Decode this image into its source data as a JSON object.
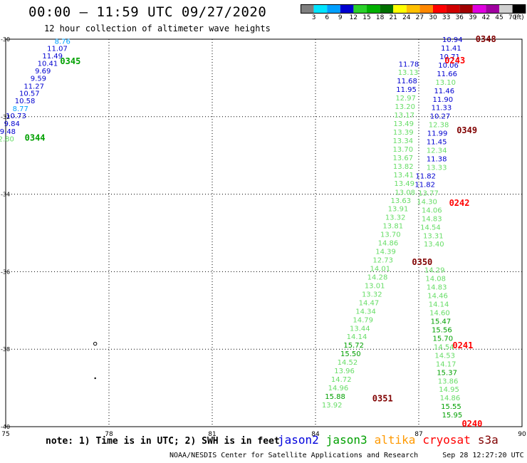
{
  "header": {
    "title": "00:00 – 11:59 UTC 09/27/2020",
    "subtitle": "12 hour collection of altimeter wave heights"
  },
  "colorbar": {
    "colors": [
      "#7f7f7f",
      "#00e5ff",
      "#00a0ff",
      "#0000d0",
      "#2bd12b",
      "#00b000",
      "#007000",
      "#ffff00",
      "#ffc000",
      "#ff8800",
      "#ff0000",
      "#d00000",
      "#a00000",
      "#e000e0",
      "#a000a0",
      "#d0d0d0",
      "#000000"
    ],
    "labels": [
      "3",
      "6",
      "9",
      "12",
      "15",
      "18",
      "21",
      "24",
      "27",
      "30",
      "33",
      "36",
      "39",
      "42",
      "45",
      "70",
      "(ft)"
    ]
  },
  "footer": {
    "note": "note: 1) Time is in UTC; 2) SWH is in feet",
    "legend": [
      {
        "name": "jason2",
        "color": "#0000dd"
      },
      {
        "name": "jason3",
        "color": "#00a000"
      },
      {
        "name": "altika",
        "color": "#ff9900"
      },
      {
        "name": "cryosat",
        "color": "#ff0000"
      },
      {
        "name": "s3a",
        "color": "#800000"
      }
    ],
    "credit": "NOAA/NESDIS Center for Satellite Applications and Research",
    "timestamp": "Sep 28 12:27:20 UTC 2020"
  },
  "chart_data": {
    "type": "scatter",
    "xlim": [
      75,
      90
    ],
    "ylim": [
      -40,
      -30
    ],
    "xticks": [
      75,
      78,
      81,
      84,
      87,
      90
    ],
    "yticks": [
      -30,
      -32,
      -34,
      -36,
      -38,
      -40
    ],
    "x_tick_labels": [
      "75",
      "78",
      "81",
      "84",
      "87",
      "90"
    ],
    "y_tick_labels": [
      "-30",
      "-32",
      "-34",
      "-36",
      "-38",
      "-40"
    ],
    "grid": true,
    "points": [
      {
        "lon": 76.65,
        "lat": -30.05,
        "v": "8.76",
        "c": "#00a0ff"
      },
      {
        "lon": 76.5,
        "lat": -30.23,
        "v": "11.07",
        "c": "#0000d0"
      },
      {
        "lon": 76.36,
        "lat": -30.42,
        "v": "11.49",
        "c": "#0000d0"
      },
      {
        "lon": 76.22,
        "lat": -30.62,
        "v": "10.41",
        "c": "#0000d0"
      },
      {
        "lon": 76.08,
        "lat": -30.81,
        "v": "9.69",
        "c": "#0000d0"
      },
      {
        "lon": 75.95,
        "lat": -31.0,
        "v": "9.59",
        "c": "#0000d0"
      },
      {
        "lon": 75.82,
        "lat": -31.2,
        "v": "11.27",
        "c": "#0000d0"
      },
      {
        "lon": 75.69,
        "lat": -31.39,
        "v": "10.57",
        "c": "#0000d0"
      },
      {
        "lon": 75.56,
        "lat": -31.58,
        "v": "10.58",
        "c": "#0000d0"
      },
      {
        "lon": 75.43,
        "lat": -31.78,
        "v": "8.77",
        "c": "#00a0ff"
      },
      {
        "lon": 75.3,
        "lat": -31.97,
        "v": "10.73",
        "c": "#0000d0"
      },
      {
        "lon": 75.18,
        "lat": -32.17,
        "v": "9.84",
        "c": "#0000d0"
      },
      {
        "lon": 75.06,
        "lat": -32.37,
        "v": "9.48",
        "c": "#0000d0"
      },
      {
        "lon": 74.95,
        "lat": -32.56,
        "v": "12.80",
        "c": "#66dd66"
      },
      {
        "lon": 86.71,
        "lat": -30.63,
        "v": "11.78",
        "c": "#0000d0"
      },
      {
        "lon": 86.69,
        "lat": -30.85,
        "v": "13.13",
        "c": "#66dd66"
      },
      {
        "lon": 86.66,
        "lat": -31.07,
        "v": "11.68",
        "c": "#0000d0"
      },
      {
        "lon": 86.64,
        "lat": -31.29,
        "v": "11.95",
        "c": "#0000d0"
      },
      {
        "lon": 86.62,
        "lat": -31.51,
        "v": "12.97",
        "c": "#66dd66"
      },
      {
        "lon": 86.6,
        "lat": -31.73,
        "v": "13.20",
        "c": "#66dd66"
      },
      {
        "lon": 86.58,
        "lat": -31.95,
        "v": "13.17",
        "c": "#66dd66"
      },
      {
        "lon": 86.56,
        "lat": -32.17,
        "v": "13.49",
        "c": "#66dd66"
      },
      {
        "lon": 86.55,
        "lat": -32.39,
        "v": "13.39",
        "c": "#66dd66"
      },
      {
        "lon": 86.54,
        "lat": -32.61,
        "v": "13.34",
        "c": "#66dd66"
      },
      {
        "lon": 86.54,
        "lat": -32.83,
        "v": "13.70",
        "c": "#66dd66"
      },
      {
        "lon": 86.54,
        "lat": -33.05,
        "v": "13.67",
        "c": "#66dd66"
      },
      {
        "lon": 86.55,
        "lat": -33.27,
        "v": "13.82",
        "c": "#66dd66"
      },
      {
        "lon": 86.56,
        "lat": -33.49,
        "v": "13.41",
        "c": "#66dd66"
      },
      {
        "lon": 86.58,
        "lat": -33.71,
        "v": "13.49",
        "c": "#66dd66"
      },
      {
        "lon": 86.6,
        "lat": -33.94,
        "v": "13.08",
        "c": "#66dd66"
      },
      {
        "lon": 86.48,
        "lat": -34.15,
        "v": "13.63",
        "c": "#66dd66"
      },
      {
        "lon": 86.4,
        "lat": -34.37,
        "v": "13.91",
        "c": "#66dd66"
      },
      {
        "lon": 86.32,
        "lat": -34.59,
        "v": "13.32",
        "c": "#66dd66"
      },
      {
        "lon": 86.25,
        "lat": -34.81,
        "v": "13.81",
        "c": "#66dd66"
      },
      {
        "lon": 86.18,
        "lat": -35.03,
        "v": "13.70",
        "c": "#66dd66"
      },
      {
        "lon": 86.11,
        "lat": -35.25,
        "v": "14.86",
        "c": "#66dd66"
      },
      {
        "lon": 86.04,
        "lat": -35.47,
        "v": "14.39",
        "c": "#66dd66"
      },
      {
        "lon": 85.96,
        "lat": -35.69,
        "v": "12.73",
        "c": "#66dd66"
      },
      {
        "lon": 85.88,
        "lat": -35.91,
        "v": "14.01",
        "c": "#66dd66"
      },
      {
        "lon": 85.8,
        "lat": -36.13,
        "v": "14.28",
        "c": "#66dd66"
      },
      {
        "lon": 85.72,
        "lat": -36.35,
        "v": "13.01",
        "c": "#66dd66"
      },
      {
        "lon": 85.64,
        "lat": -36.57,
        "v": "13.32",
        "c": "#66dd66"
      },
      {
        "lon": 85.55,
        "lat": -36.79,
        "v": "14.47",
        "c": "#66dd66"
      },
      {
        "lon": 85.46,
        "lat": -37.01,
        "v": "14.34",
        "c": "#66dd66"
      },
      {
        "lon": 85.38,
        "lat": -37.23,
        "v": "14.79",
        "c": "#66dd66"
      },
      {
        "lon": 85.29,
        "lat": -37.45,
        "v": "13.44",
        "c": "#66dd66"
      },
      {
        "lon": 85.2,
        "lat": -37.67,
        "v": "14.14",
        "c": "#66dd66"
      },
      {
        "lon": 85.11,
        "lat": -37.89,
        "v": "15.72",
        "c": "#00a000"
      },
      {
        "lon": 85.02,
        "lat": -38.11,
        "v": "15.50",
        "c": "#00a000"
      },
      {
        "lon": 84.93,
        "lat": -38.33,
        "v": "14.52",
        "c": "#66dd66"
      },
      {
        "lon": 84.84,
        "lat": -38.55,
        "v": "13.96",
        "c": "#66dd66"
      },
      {
        "lon": 84.75,
        "lat": -38.77,
        "v": "14.72",
        "c": "#66dd66"
      },
      {
        "lon": 84.66,
        "lat": -38.99,
        "v": "14.96",
        "c": "#66dd66"
      },
      {
        "lon": 84.57,
        "lat": -39.21,
        "v": "15.88",
        "c": "#00a000"
      },
      {
        "lon": 84.48,
        "lat": -39.43,
        "v": "13.92",
        "c": "#66dd66"
      },
      {
        "lon": 87.98,
        "lat": -30.0,
        "v": "10.94",
        "c": "#0000d0"
      },
      {
        "lon": 87.94,
        "lat": -30.22,
        "v": "11.41",
        "c": "#0000d0"
      },
      {
        "lon": 87.9,
        "lat": -30.44,
        "v": "10.71",
        "c": "#0000d0"
      },
      {
        "lon": 87.86,
        "lat": -30.66,
        "v": "10.06",
        "c": "#0000d0"
      },
      {
        "lon": 87.82,
        "lat": -30.88,
        "v": "11.66",
        "c": "#0000d0"
      },
      {
        "lon": 87.78,
        "lat": -31.1,
        "v": "13.10",
        "c": "#66dd66"
      },
      {
        "lon": 87.74,
        "lat": -31.32,
        "v": "11.46",
        "c": "#0000d0"
      },
      {
        "lon": 87.7,
        "lat": -31.54,
        "v": "11.90",
        "c": "#0000d0"
      },
      {
        "lon": 87.66,
        "lat": -31.76,
        "v": "11.33",
        "c": "#0000d0"
      },
      {
        "lon": 87.62,
        "lat": -31.98,
        "v": "10.27",
        "c": "#0000d0"
      },
      {
        "lon": 87.58,
        "lat": -32.2,
        "v": "12.38",
        "c": "#66dd66"
      },
      {
        "lon": 87.54,
        "lat": -32.42,
        "v": "11.99",
        "c": "#0000d0"
      },
      {
        "lon": 87.52,
        "lat": -32.64,
        "v": "11.45",
        "c": "#0000d0"
      },
      {
        "lon": 87.52,
        "lat": -32.86,
        "v": "12.34",
        "c": "#66dd66"
      },
      {
        "lon": 87.52,
        "lat": -33.08,
        "v": "11.38",
        "c": "#0000d0"
      },
      {
        "lon": 87.52,
        "lat": -33.3,
        "v": "13.33",
        "c": "#66dd66"
      },
      {
        "lon": 87.2,
        "lat": -33.52,
        "v": "11.82",
        "c": "#0000d0"
      },
      {
        "lon": 87.18,
        "lat": -33.74,
        "v": "11.82",
        "c": "#0000d0"
      },
      {
        "lon": 87.28,
        "lat": -33.96,
        "v": "13.77",
        "c": "#66dd66"
      },
      {
        "lon": 87.24,
        "lat": -34.18,
        "v": "14.30",
        "c": "#66dd66"
      },
      {
        "lon": 87.38,
        "lat": -34.4,
        "v": "14.06",
        "c": "#66dd66"
      },
      {
        "lon": 87.38,
        "lat": -34.62,
        "v": "14.83",
        "c": "#66dd66"
      },
      {
        "lon": 87.34,
        "lat": -34.84,
        "v": "14.54",
        "c": "#66dd66"
      },
      {
        "lon": 87.42,
        "lat": -35.06,
        "v": "13.31",
        "c": "#66dd66"
      },
      {
        "lon": 87.44,
        "lat": -35.28,
        "v": "13.40",
        "c": "#66dd66"
      },
      {
        "lon": 87.46,
        "lat": -35.95,
        "v": "14.29",
        "c": "#66dd66"
      },
      {
        "lon": 87.49,
        "lat": -36.17,
        "v": "14.08",
        "c": "#66dd66"
      },
      {
        "lon": 87.52,
        "lat": -36.39,
        "v": "14.83",
        "c": "#66dd66"
      },
      {
        "lon": 87.55,
        "lat": -36.61,
        "v": "14.46",
        "c": "#66dd66"
      },
      {
        "lon": 87.58,
        "lat": -36.83,
        "v": "14.14",
        "c": "#66dd66"
      },
      {
        "lon": 87.61,
        "lat": -37.05,
        "v": "14.60",
        "c": "#66dd66"
      },
      {
        "lon": 87.64,
        "lat": -37.27,
        "v": "15.47",
        "c": "#00a000"
      },
      {
        "lon": 87.67,
        "lat": -37.49,
        "v": "15.56",
        "c": "#00a000"
      },
      {
        "lon": 87.7,
        "lat": -37.71,
        "v": "15.70",
        "c": "#00a000"
      },
      {
        "lon": 87.73,
        "lat": -37.93,
        "v": "14.54",
        "c": "#66dd66"
      },
      {
        "lon": 87.76,
        "lat": -38.15,
        "v": "14.53",
        "c": "#66dd66"
      },
      {
        "lon": 87.79,
        "lat": -38.37,
        "v": "14.17",
        "c": "#66dd66"
      },
      {
        "lon": 87.82,
        "lat": -38.59,
        "v": "15.37",
        "c": "#00a000"
      },
      {
        "lon": 87.85,
        "lat": -38.81,
        "v": "13.86",
        "c": "#66dd66"
      },
      {
        "lon": 87.88,
        "lat": -39.03,
        "v": "14.95",
        "c": "#66dd66"
      },
      {
        "lon": 87.91,
        "lat": -39.25,
        "v": "14.86",
        "c": "#66dd66"
      },
      {
        "lon": 87.94,
        "lat": -39.47,
        "v": "15.55",
        "c": "#00a000"
      },
      {
        "lon": 87.97,
        "lat": -39.69,
        "v": "15.95",
        "c": "#00a000"
      }
    ],
    "time_labels": [
      {
        "lon": 88.95,
        "lat": -30.0,
        "t": "0348",
        "c": "#800000"
      },
      {
        "lon": 88.05,
        "lat": -30.55,
        "t": "0243",
        "c": "#ff0000"
      },
      {
        "lon": 76.88,
        "lat": -30.57,
        "t": "0345",
        "c": "#00a000"
      },
      {
        "lon": 88.4,
        "lat": -32.35,
        "t": "0349",
        "c": "#800000"
      },
      {
        "lon": 75.85,
        "lat": -32.55,
        "t": "0344",
        "c": "#00a000"
      },
      {
        "lon": 88.18,
        "lat": -34.23,
        "t": "0242",
        "c": "#ff0000"
      },
      {
        "lon": 87.1,
        "lat": -35.75,
        "t": "0350",
        "c": "#800000"
      },
      {
        "lon": 88.28,
        "lat": -37.9,
        "t": "0241",
        "c": "#ff0000"
      },
      {
        "lon": 85.95,
        "lat": -39.27,
        "t": "0351",
        "c": "#800000"
      },
      {
        "lon": 88.55,
        "lat": -39.93,
        "t": "0240",
        "c": "#ff0000"
      }
    ],
    "markers": [
      {
        "lon": 77.6,
        "lat": -37.86,
        "shape": "circle"
      },
      {
        "lon": 77.6,
        "lat": -38.75,
        "shape": "dot"
      }
    ]
  }
}
